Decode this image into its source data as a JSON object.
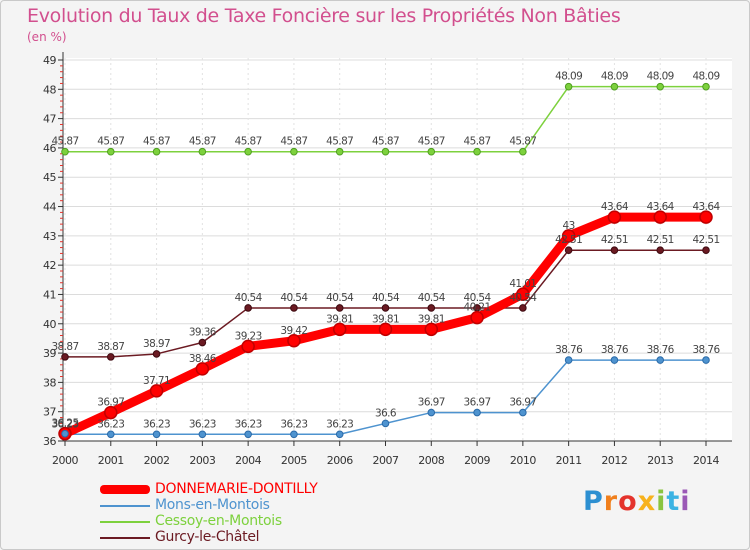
{
  "chart_data": {
    "type": "line",
    "title": "Evolution du Taux de Taxe Foncière sur les Propriétés Non Bâties",
    "ylabel": "(en %)",
    "xlabel": "",
    "categories": [
      "2000",
      "2001",
      "2002",
      "2003",
      "2004",
      "2005",
      "2006",
      "2007",
      "2008",
      "2009",
      "2010",
      "2011",
      "2012",
      "2013",
      "2014"
    ],
    "ylim": [
      36,
      49
    ],
    "yticks": [
      "36",
      "37",
      "38",
      "39",
      "40",
      "41",
      "42",
      "43",
      "44",
      "45",
      "46",
      "47",
      "48",
      "49"
    ],
    "grid": true,
    "legend_position": "bottom-left",
    "series": [
      {
        "name": "DONNEMARIE-DONTILLY",
        "color": "#ff0000",
        "values": [
          36.25,
          36.97,
          37.71,
          38.46,
          39.23,
          39.42,
          39.81,
          39.81,
          39.81,
          40.21,
          41.01,
          43,
          43.64,
          43.64,
          43.64
        ],
        "labels": [
          "36.25",
          "36.97",
          "37.71",
          "38.46",
          "39.23",
          "39.42",
          "39.81",
          "39.81",
          "39.81",
          "40.21",
          "41.01",
          "43",
          "43.64",
          "43.64",
          "43.64"
        ]
      },
      {
        "name": "Mons-en-Montois",
        "color": "#4e93cf",
        "values": [
          36.23,
          36.23,
          36.23,
          36.23,
          36.23,
          36.23,
          36.23,
          36.6,
          36.97,
          36.97,
          36.97,
          38.76,
          38.76,
          38.76,
          38.76
        ],
        "labels": [
          "36.23",
          "36.23",
          "36.23",
          "36.23",
          "36.23",
          "36.23",
          "36.23",
          "36.6",
          "36.97",
          "36.97",
          "36.97",
          "38.76",
          "38.76",
          "38.76",
          "38.76"
        ]
      },
      {
        "name": "Cessoy-en-Montois",
        "color": "#7dd13d",
        "values": [
          45.87,
          45.87,
          45.87,
          45.87,
          45.87,
          45.87,
          45.87,
          45.87,
          45.87,
          45.87,
          45.87,
          48.09,
          48.09,
          48.09,
          48.09
        ],
        "labels": [
          "45.87",
          "45.87",
          "45.87",
          "45.87",
          "45.87",
          "45.87",
          "45.87",
          "45.87",
          "45.87",
          "45.87",
          "45.87",
          "48.09",
          "48.09",
          "48.09",
          "48.09"
        ]
      },
      {
        "name": "Gurcy-le-Châtel",
        "color": "#6b1a22",
        "values": [
          38.87,
          38.87,
          38.97,
          39.36,
          40.54,
          40.54,
          40.54,
          40.54,
          40.54,
          40.54,
          40.54,
          42.51,
          42.51,
          42.51,
          42.51
        ],
        "labels": [
          "38.87",
          "38.87",
          "38.97",
          "39.36",
          "40.54",
          "40.54",
          "40.54",
          "40.54",
          "40.54",
          "40.54",
          "40.54",
          "42.51",
          "42.51",
          "42.51",
          "42.51"
        ]
      }
    ]
  },
  "logo": {
    "letters": [
      "P",
      "r",
      "o",
      "x",
      "i",
      "t",
      "i"
    ],
    "colors": [
      "#2c8fd1",
      "#f07f1c",
      "#e4332c",
      "#f7b21c",
      "#8ac43f",
      "#3bb3e3",
      "#9b59b6"
    ]
  }
}
